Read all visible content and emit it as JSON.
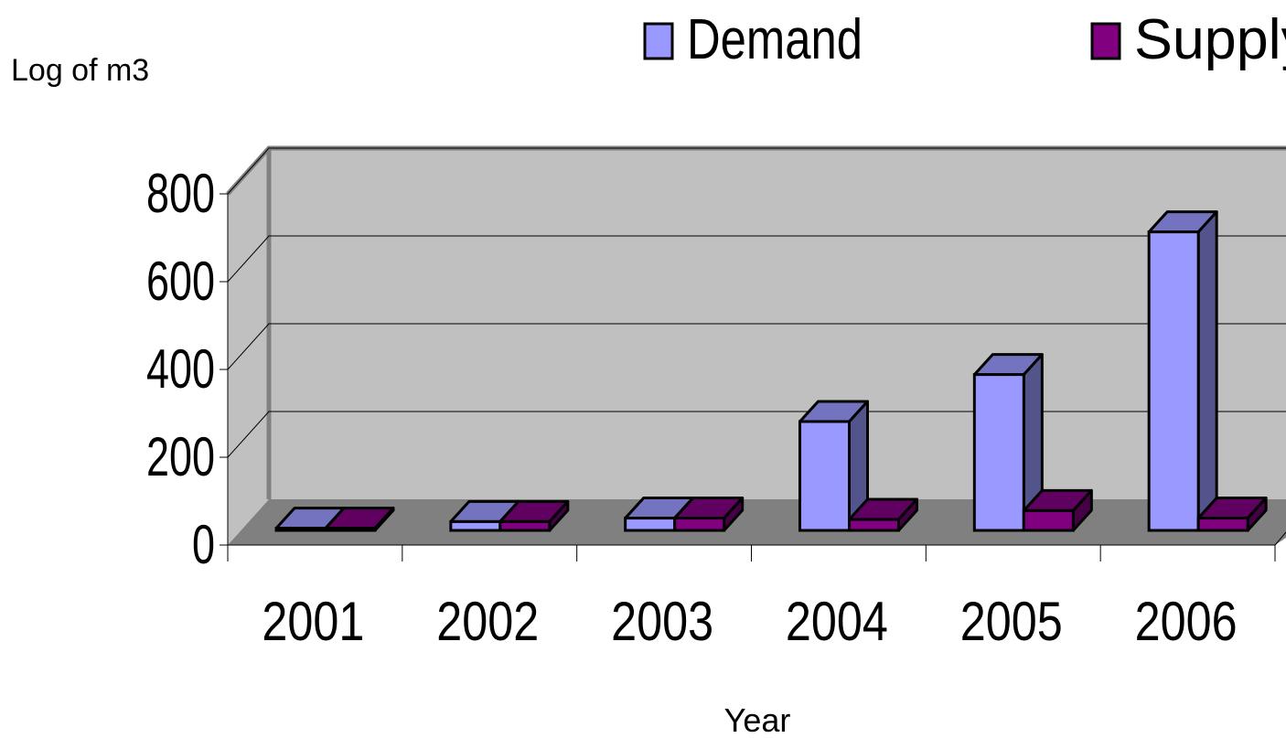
{
  "chart_data": {
    "type": "bar",
    "title": "",
    "xlabel": "Year",
    "ylabel": "Log of m3",
    "categories": [
      "2001",
      "2002",
      "2003",
      "2004",
      "2005",
      "2006"
    ],
    "series": [
      {
        "name": "Demand",
        "values": [
          5,
          20,
          28,
          248,
          355,
          680
        ],
        "color": "#9999ff"
      },
      {
        "name": "Supply",
        "values": [
          5,
          20,
          28,
          25,
          45,
          28
        ],
        "color": "#800080"
      }
    ],
    "ylim": [
      0,
      800
    ],
    "yticks": [
      "0",
      "200",
      "400",
      "600",
      "800"
    ],
    "grid": true,
    "legend_position": "top",
    "wall_color": "#c0c0c0",
    "floor_color": "#808080"
  }
}
